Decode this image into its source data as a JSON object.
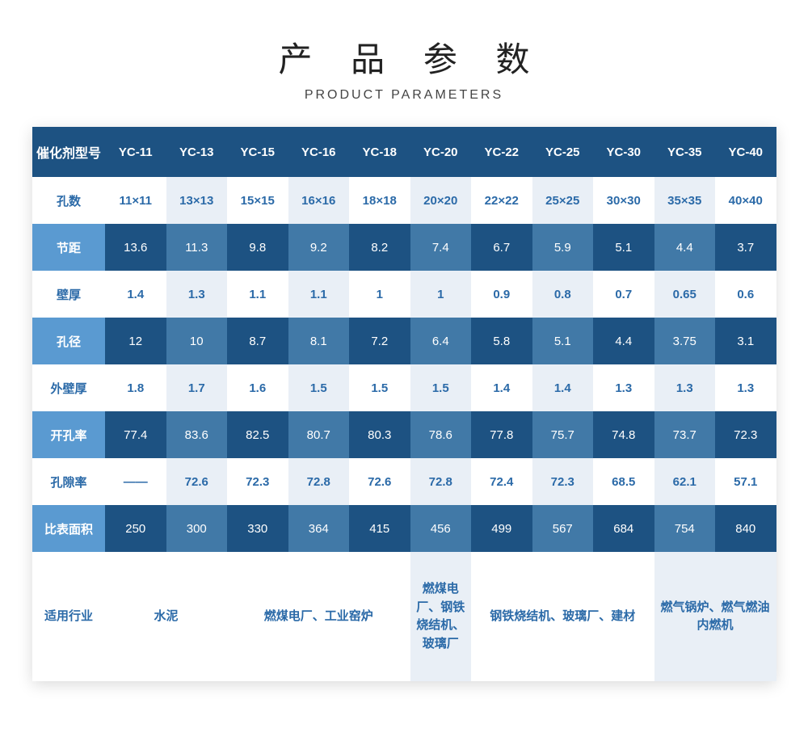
{
  "title_cn": "产 品 参 数",
  "title_en": "PRODUCT PARAMETERS",
  "header_label": "催化剂型号",
  "models": [
    "YC-11",
    "YC-13",
    "YC-15",
    "YC-16",
    "YC-18",
    "YC-20",
    "YC-22",
    "YC-25",
    "YC-30",
    "YC-35",
    "YC-40"
  ],
  "rows": [
    {
      "label": "孔数",
      "values": [
        "11×11",
        "13×13",
        "15×15",
        "16×16",
        "18×18",
        "20×20",
        "22×22",
        "25×25",
        "30×30",
        "35×35",
        "40×40"
      ]
    },
    {
      "label": "节距",
      "values": [
        "13.6",
        "11.3",
        "9.8",
        "9.2",
        "8.2",
        "7.4",
        "6.7",
        "5.9",
        "5.1",
        "4.4",
        "3.7"
      ]
    },
    {
      "label": "壁厚",
      "values": [
        "1.4",
        "1.3",
        "1.1",
        "1.1",
        "1",
        "1",
        "0.9",
        "0.8",
        "0.7",
        "0.65",
        "0.6"
      ]
    },
    {
      "label": "孔径",
      "values": [
        "12",
        "10",
        "8.7",
        "8.1",
        "7.2",
        "6.4",
        "5.8",
        "5.1",
        "4.4",
        "3.75",
        "3.1"
      ]
    },
    {
      "label": "外壁厚",
      "values": [
        "1.8",
        "1.7",
        "1.6",
        "1.5",
        "1.5",
        "1.5",
        "1.4",
        "1.4",
        "1.3",
        "1.3",
        "1.3"
      ]
    },
    {
      "label": "开孔率",
      "values": [
        "77.4",
        "83.6",
        "82.5",
        "80.7",
        "80.3",
        "78.6",
        "77.8",
        "75.7",
        "74.8",
        "73.7",
        "72.3"
      ]
    },
    {
      "label": "孔隙率",
      "values": [
        "——",
        "72.6",
        "72.3",
        "72.8",
        "72.6",
        "72.8",
        "72.4",
        "72.3",
        "68.5",
        "62.1",
        "57.1"
      ]
    },
    {
      "label": "比表面积",
      "values": [
        "250",
        "300",
        "330",
        "364",
        "415",
        "456",
        "499",
        "567",
        "684",
        "754",
        "840"
      ]
    }
  ],
  "last_row": {
    "label": "适用行业",
    "groups": [
      {
        "span": 2,
        "text": "水泥"
      },
      {
        "span": 3,
        "text": "燃煤电厂、工业窑炉"
      },
      {
        "span": 1,
        "text": "燃煤电厂、钢铁烧结机、玻璃厂"
      },
      {
        "span": 3,
        "text": "钢铁烧结机、玻璃厂、建材"
      },
      {
        "span": 2,
        "text": "燃气锅炉、燃气燃油内燃机"
      }
    ]
  },
  "colors": {
    "hdr_bg": "#1d5282",
    "blue_mid": "#5a9ad1",
    "blue_alt": "#4179a7",
    "light_alt": "#e9eff6",
    "text_blue": "#2b6aa8"
  }
}
